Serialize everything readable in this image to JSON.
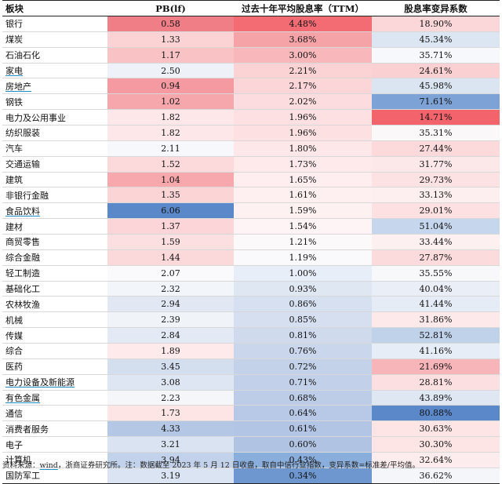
{
  "table": {
    "headers": [
      "板块",
      "PB(lf)",
      "过去十年平均股息率（TTM）",
      "股息率变异系数"
    ],
    "rows": [
      {
        "sector": "银行",
        "pb": "0.58",
        "dy": "4.48%",
        "cv": "18.90%",
        "pb_color": "#f07e86",
        "dy_color": "#f36b73",
        "cv_color": "#fbd7d9",
        "underline": false
      },
      {
        "sector": "煤炭",
        "pb": "1.33",
        "dy": "3.68%",
        "cv": "45.34%",
        "pb_color": "#fbd3d5",
        "dy_color": "#f6a3a8",
        "cv_color": "#dce5f2",
        "underline": false
      },
      {
        "sector": "石油石化",
        "pb": "1.17",
        "dy": "3.00%",
        "cv": "35.71%",
        "pb_color": "#f9c3c6",
        "dy_color": "#f8b8bb",
        "cv_color": "#f7f8fb",
        "underline": false
      },
      {
        "sector": "家电",
        "pb": "2.50",
        "dy": "2.21%",
        "cv": "24.61%",
        "pb_color": "#eef2f8",
        "dy_color": "#fbd3d5",
        "cv_color": "#fbd0d2",
        "underline": true
      },
      {
        "sector": "房地产",
        "pb": "0.94",
        "dy": "2.17%",
        "cv": "45.98%",
        "pb_color": "#f49aa0",
        "dy_color": "#fbd5d7",
        "cv_color": "#dbe4f1",
        "underline": true
      },
      {
        "sector": "钢铁",
        "pb": "1.02",
        "dy": "2.02%",
        "cv": "71.61%",
        "pb_color": "#f6a7ac",
        "dy_color": "#fcdcde",
        "cv_color": "#7da3d6",
        "underline": false
      },
      {
        "sector": "电力及公用事业",
        "pb": "1.82",
        "dy": "1.96%",
        "cv": "14.71%",
        "pb_color": "#fde7e8",
        "dy_color": "#fde0e2",
        "cv_color": "#f2636c",
        "underline": false
      },
      {
        "sector": "纺织服装",
        "pb": "1.82",
        "dy": "1.96%",
        "cv": "35.31%",
        "pb_color": "#fde7e8",
        "dy_color": "#fde0e2",
        "cv_color": "#fbf8f9",
        "underline": false
      },
      {
        "sector": "汽车",
        "pb": "2.11",
        "dy": "1.80%",
        "cv": "27.44%",
        "pb_color": "#f7f8fb",
        "dy_color": "#fde7e8",
        "cv_color": "#fcdadc",
        "underline": false
      },
      {
        "sector": "交通运输",
        "pb": "1.52",
        "dy": "1.73%",
        "cv": "31.77%",
        "pb_color": "#fcdadc",
        "dy_color": "#feeaeb",
        "cv_color": "#fde8e9",
        "underline": false
      },
      {
        "sector": "建筑",
        "pb": "1.04",
        "dy": "1.65%",
        "cv": "29.73%",
        "pb_color": "#f6a8ad",
        "dy_color": "#feeef0",
        "cv_color": "#fde2e4",
        "underline": false
      },
      {
        "sector": "非银行金融",
        "pb": "1.35",
        "dy": "1.61%",
        "cv": "33.13%",
        "pb_color": "#fbd4d6",
        "dy_color": "#fef0f1",
        "cv_color": "#fdeff0",
        "underline": false
      },
      {
        "sector": "食品饮料",
        "pb": "6.06",
        "dy": "1.59%",
        "cv": "29.01%",
        "pb_color": "#5b88c8",
        "dy_color": "#fef1f2",
        "cv_color": "#fde0e2",
        "underline": true
      },
      {
        "sector": "建材",
        "pb": "1.37",
        "dy": "1.54%",
        "cv": "51.04%",
        "pb_color": "#fbd5d7",
        "dy_color": "#fef4f5",
        "cv_color": "#c6d6ec",
        "underline": false
      },
      {
        "sector": "商贸零售",
        "pb": "1.59",
        "dy": "1.21%",
        "cv": "33.44%",
        "pb_color": "#fcdfe1",
        "dy_color": "#fbf9fa",
        "cv_color": "#fdf0f1",
        "underline": false
      },
      {
        "sector": "综合金融",
        "pb": "1.44",
        "dy": "1.19%",
        "cv": "27.87%",
        "pb_color": "#fbd8da",
        "dy_color": "#faf9fb",
        "cv_color": "#fcdbdd",
        "underline": false
      },
      {
        "sector": "轻工制造",
        "pb": "2.07",
        "dy": "1.00%",
        "cv": "35.55%",
        "pb_color": "#faf9fb",
        "dy_color": "#e8eef7",
        "cv_color": "#f8f8fb",
        "underline": false
      },
      {
        "sector": "基础化工",
        "pb": "2.32",
        "dy": "0.93%",
        "cv": "40.04%",
        "pb_color": "#f2f5fa",
        "dy_color": "#dfe7f3",
        "cv_color": "#eaeff7",
        "underline": false
      },
      {
        "sector": "农林牧渔",
        "pb": "2.94",
        "dy": "0.86%",
        "cv": "41.44%",
        "pb_color": "#e1e8f4",
        "dy_color": "#d6e0f0",
        "cv_color": "#e6ecf5",
        "underline": false
      },
      {
        "sector": "机械",
        "pb": "2.39",
        "dy": "0.85%",
        "cv": "31.86%",
        "pb_color": "#f0f4f9",
        "dy_color": "#d5dfef",
        "cv_color": "#fde9ea",
        "underline": false
      },
      {
        "sector": "传媒",
        "pb": "2.84",
        "dy": "0.81%",
        "cv": "52.81%",
        "pb_color": "#e3eaf5",
        "dy_color": "#cfdbed",
        "cv_color": "#c0d1ea",
        "underline": false
      },
      {
        "sector": "综合",
        "pb": "1.89",
        "dy": "0.76%",
        "cv": "41.16%",
        "pb_color": "#feeaeb",
        "dy_color": "#c9d6eb",
        "cv_color": "#e7edf6",
        "underline": false
      },
      {
        "sector": "医药",
        "pb": "3.45",
        "dy": "0.72%",
        "cv": "21.69%",
        "pb_color": "#d3deef",
        "dy_color": "#c3d2e9",
        "cv_color": "#f8b5b9",
        "underline": false
      },
      {
        "sector": "电力设备及新能源",
        "pb": "3.08",
        "dy": "0.71%",
        "cv": "28.81%",
        "pb_color": "#dee6f3",
        "dy_color": "#c2d1e9",
        "cv_color": "#fcdfe1",
        "underline": true
      },
      {
        "sector": "有色金属",
        "pb": "2.23",
        "dy": "0.68%",
        "cv": "43.89%",
        "pb_color": "#f4f6fa",
        "dy_color": "#bdcde8",
        "cv_color": "#dfe7f3",
        "underline": true
      },
      {
        "sector": "通信",
        "pb": "1.73",
        "dy": "0.64%",
        "cv": "80.88%",
        "pb_color": "#fde4e5",
        "dy_color": "#b7c9e6",
        "cv_color": "#5b88c8",
        "underline": false
      },
      {
        "sector": "消费者服务",
        "pb": "4.33",
        "dy": "0.61%",
        "cv": "30.63%",
        "pb_color": "#b4c7e5",
        "dy_color": "#b2c5e4",
        "cv_color": "#fde5e6",
        "underline": false
      },
      {
        "sector": "电子",
        "pb": "3.21",
        "dy": "0.60%",
        "cv": "30.30%",
        "pb_color": "#dae3f2",
        "dy_color": "#b0c3e3",
        "cv_color": "#fde4e5",
        "underline": false
      },
      {
        "sector": "计算机",
        "pb": "3.94",
        "dy": "0.43%",
        "cv": "32.64%",
        "pb_color": "#c2d2ea",
        "dy_color": "#8aaedc",
        "cv_color": "#fdeced",
        "underline": false
      },
      {
        "sector": "国防军工",
        "pb": "3.19",
        "dy": "0.34%",
        "cv": "36.62%",
        "pb_color": "#dbe4f2",
        "dy_color": "#6e97cf",
        "cv_color": "#f4f6fa",
        "underline": false
      }
    ]
  },
  "footnote": {
    "prefix": "资料来源：",
    "source": "wind",
    "suffix": "，浙商证券研究所。注：数据截至 2023 年 5 月 12 日收盘，取自中信行业指数，变异系数=标准差/平均值。"
  }
}
